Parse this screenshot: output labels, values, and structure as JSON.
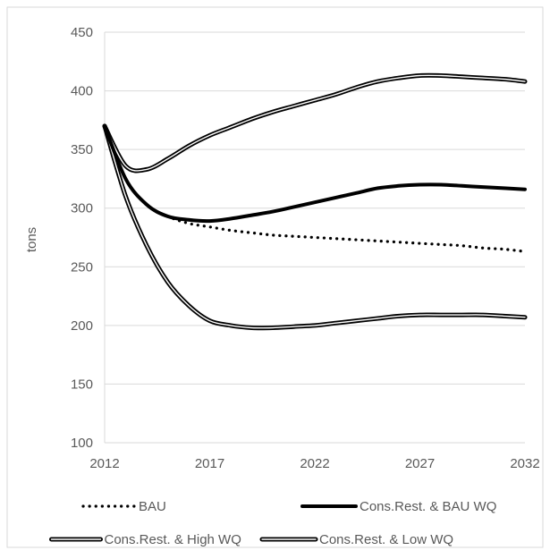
{
  "chart_data": {
    "type": "line",
    "title": "",
    "xlabel": "",
    "ylabel": "tons",
    "xlim": [
      2012,
      2032
    ],
    "ylim": [
      100,
      450
    ],
    "xticks": [
      2012,
      2017,
      2022,
      2027,
      2032
    ],
    "yticks": [
      100,
      150,
      200,
      250,
      300,
      350,
      400,
      450
    ],
    "grid": "horizontal",
    "legend_position": "bottom",
    "x": [
      2012,
      2013,
      2014,
      2015,
      2016,
      2017,
      2018,
      2019,
      2020,
      2021,
      2022,
      2023,
      2024,
      2025,
      2026,
      2027,
      2028,
      2029,
      2030,
      2031,
      2032
    ],
    "series": [
      {
        "name": "BAU",
        "style": "dotted",
        "color": "#000000",
        "values": [
          370,
          325,
          303,
          293,
          287,
          284,
          281,
          279,
          277,
          276,
          275,
          274,
          273,
          272,
          271,
          270,
          269,
          268,
          266,
          265,
          263
        ]
      },
      {
        "name": "Cons.Rest. & BAU WQ",
        "style": "thick",
        "color": "#000000",
        "values": [
          370,
          325,
          303,
          293,
          290,
          289,
          291,
          294,
          297,
          301,
          305,
          309,
          313,
          317,
          319,
          320,
          320,
          319,
          318,
          317,
          316
        ]
      },
      {
        "name": "Cons.Rest. & High WQ",
        "style": "double",
        "color": "#000000",
        "values": [
          370,
          336,
          333,
          342,
          353,
          362,
          369,
          376,
          382,
          387,
          392,
          397,
          403,
          408,
          411,
          413,
          413,
          412,
          411,
          410,
          408
        ]
      },
      {
        "name": "Cons.Rest. & Low WQ",
        "style": "double",
        "color": "#000000",
        "values": [
          370,
          310,
          268,
          237,
          217,
          204,
          200,
          198,
          198,
          199,
          200,
          202,
          204,
          206,
          208,
          209,
          209,
          209,
          209,
          208,
          207
        ]
      }
    ]
  }
}
